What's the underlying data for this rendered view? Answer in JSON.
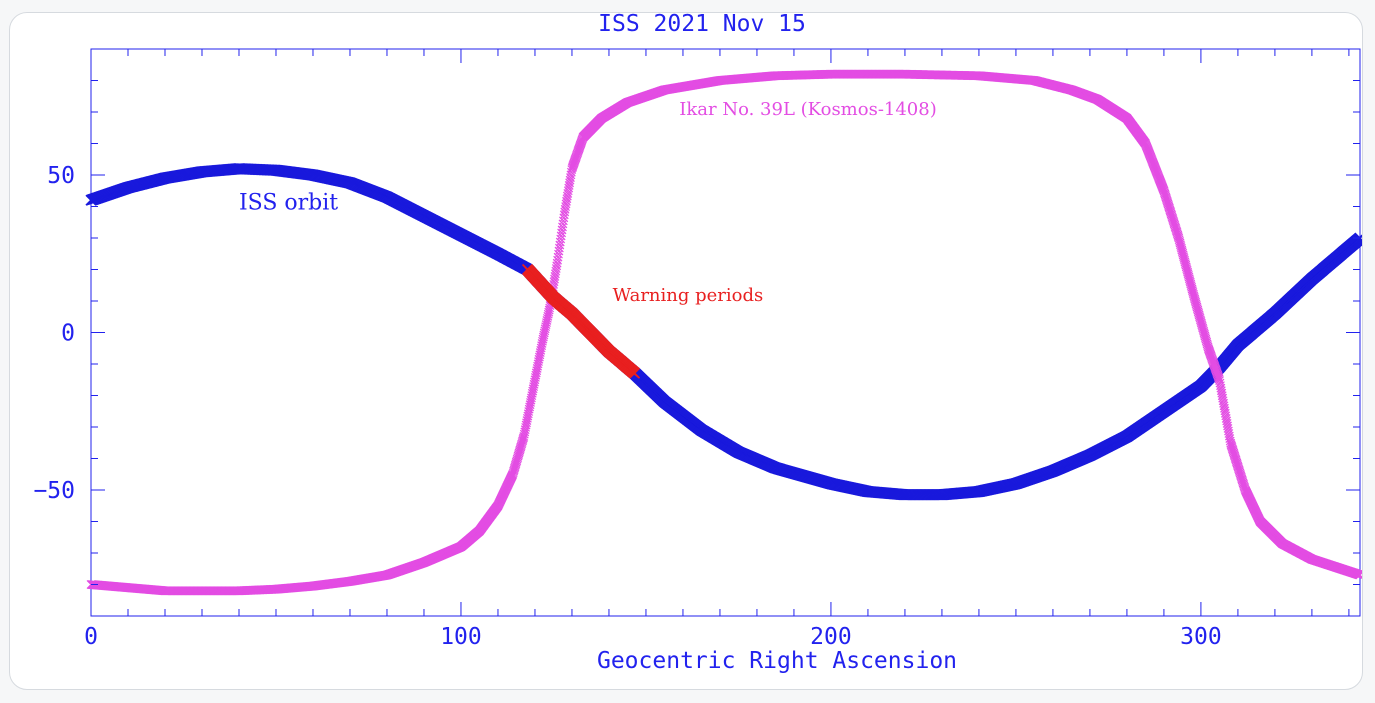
{
  "chart_data": {
    "type": "scatter",
    "title": "ISS 2021 Nov 15",
    "xlabel": "Geocentric Right Ascension",
    "ylabel": "",
    "xlim": [
      0,
      343
    ],
    "ylim": [
      -90,
      90
    ],
    "x_ticks": [
      0,
      100,
      200,
      300
    ],
    "x_tick_labels": [
      "0",
      "100",
      "200",
      "300"
    ],
    "y_ticks": [
      50,
      0,
      -50
    ],
    "y_tick_labels": [
      "50",
      "0",
      "−50"
    ],
    "marker": "x",
    "grid": false,
    "series": [
      {
        "name": "ISS orbit",
        "color": "#1a1adc",
        "points": [
          [
            0,
            42
          ],
          [
            10,
            46
          ],
          [
            20,
            49
          ],
          [
            30,
            51
          ],
          [
            40,
            52
          ],
          [
            50,
            51.5
          ],
          [
            60,
            50
          ],
          [
            70,
            47.5
          ],
          [
            80,
            43
          ],
          [
            90,
            37
          ],
          [
            100,
            31
          ],
          [
            110,
            25
          ],
          [
            118,
            20
          ],
          [
            125,
            11
          ],
          [
            130,
            6
          ],
          [
            140,
            -6
          ],
          [
            147,
            -13
          ],
          [
            155,
            -22
          ],
          [
            165,
            -31
          ],
          [
            175,
            -38
          ],
          [
            185,
            -43
          ],
          [
            200,
            -48
          ],
          [
            210,
            -50.5
          ],
          [
            220,
            -51.5
          ],
          [
            230,
            -51.5
          ],
          [
            240,
            -50.5
          ],
          [
            250,
            -48
          ],
          [
            260,
            -44
          ],
          [
            270,
            -39
          ],
          [
            280,
            -33
          ],
          [
            290,
            -25
          ],
          [
            300,
            -17
          ],
          [
            305,
            -11
          ],
          [
            310,
            -4
          ],
          [
            320,
            6
          ],
          [
            330,
            17
          ],
          [
            343,
            30
          ]
        ]
      },
      {
        "name": "Ikar No. 39L (Kosmos-1408)",
        "color": "#e34de3",
        "points": [
          [
            0,
            -80
          ],
          [
            10,
            -81
          ],
          [
            20,
            -82
          ],
          [
            30,
            -82
          ],
          [
            40,
            -82
          ],
          [
            50,
            -81.5
          ],
          [
            60,
            -80.5
          ],
          [
            70,
            -79
          ],
          [
            80,
            -77
          ],
          [
            90,
            -73
          ],
          [
            100,
            -68
          ],
          [
            105,
            -63
          ],
          [
            110,
            -55
          ],
          [
            114,
            -45
          ],
          [
            117,
            -33
          ],
          [
            120,
            -15
          ],
          [
            122,
            -3
          ],
          [
            124,
            8
          ],
          [
            126,
            22
          ],
          [
            128,
            38
          ],
          [
            130,
            52
          ],
          [
            133,
            62
          ],
          [
            138,
            68
          ],
          [
            145,
            73
          ],
          [
            155,
            77
          ],
          [
            170,
            80
          ],
          [
            185,
            81.5
          ],
          [
            200,
            82
          ],
          [
            220,
            82
          ],
          [
            240,
            81.5
          ],
          [
            255,
            80
          ],
          [
            265,
            77
          ],
          [
            272,
            74
          ],
          [
            280,
            68
          ],
          [
            285,
            60
          ],
          [
            290,
            45
          ],
          [
            294,
            30
          ],
          [
            298,
            12
          ],
          [
            302,
            -5
          ],
          [
            305,
            -15
          ],
          [
            308,
            -35
          ],
          [
            312,
            -50
          ],
          [
            316,
            -60
          ],
          [
            322,
            -67
          ],
          [
            330,
            -72
          ],
          [
            343,
            -77
          ]
        ]
      },
      {
        "name": "",
        "color": "#e82020",
        "points": [
          [
            118,
            20
          ],
          [
            125,
            11
          ],
          [
            130,
            6
          ],
          [
            140,
            -6
          ],
          [
            147,
            -13
          ]
        ]
      }
    ],
    "annotations": [
      {
        "text": "ISS orbit",
        "x": 40,
        "y": 39,
        "color": "#2222ee"
      },
      {
        "text": "Ikar No. 39L (Kosmos-1408)",
        "x": 159,
        "y": 69,
        "color": "#e34de3"
      },
      {
        "text": "Warning periods",
        "x": 141,
        "y": 10,
        "color": "#e82020"
      }
    ]
  }
}
